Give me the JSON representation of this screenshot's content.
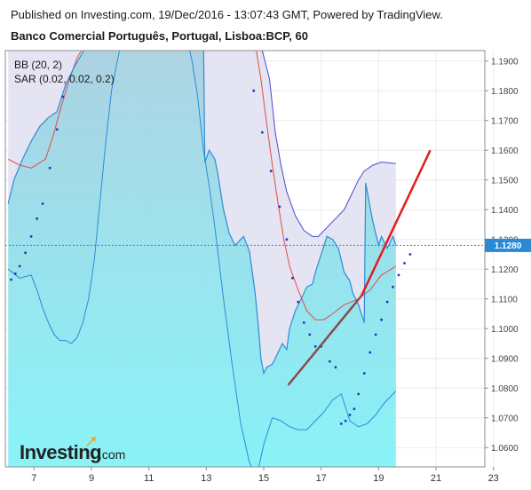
{
  "header": {
    "published": "Published on Investing.com, 19/Dec/2016 - 13:07:43 GMT, Powered by TradingView.",
    "instrument": "Banco Comercial Português, Portugal, Lisboa:BCP, 60"
  },
  "legend": {
    "bb": "BB (20, 2)",
    "sar": "SAR (0.02, 0.02, 0.2)"
  },
  "logo": {
    "brand": "Investing",
    "suffix": ".com"
  },
  "chart_data": {
    "type": "line",
    "title": "Banco Comercial Português, Portugal, Lisboa:BCP, 60",
    "x_ticks": [
      "7",
      "9",
      "11",
      "13",
      "15",
      "17",
      "19",
      "21",
      "23"
    ],
    "y_ticks": [
      "1.1900",
      "1.1800",
      "1.1700",
      "1.1600",
      "1.1500",
      "1.1400",
      "1.1300",
      "1.1200",
      "1.1100",
      "1.1000",
      "1.0900",
      "1.0800",
      "1.0700",
      "1.0600"
    ],
    "ylim": [
      1.0535,
      1.1935
    ],
    "current_price": "1.1280",
    "colors": {
      "band_fill": "#e3e3f2",
      "upper_line": "#4a4ad6",
      "middle_line": "#e34a4a",
      "price_line": "#2c8cd8",
      "price_fill_top": "#a9cfe0",
      "price_fill_bottom": "#7ff2f7",
      "sar": "#1f36c2",
      "trend": "#e31b1b",
      "price_tag": "#2a8ad4"
    },
    "price": [
      {
        "x": 6.1,
        "y": 1.142
      },
      {
        "x": 6.3,
        "y": 1.15
      },
      {
        "x": 6.6,
        "y": 1.157
      },
      {
        "x": 6.9,
        "y": 1.163
      },
      {
        "x": 7.2,
        "y": 1.168
      },
      {
        "x": 7.5,
        "y": 1.171
      },
      {
        "x": 7.8,
        "y": 1.173
      },
      {
        "x": 8.1,
        "y": 1.182
      },
      {
        "x": 8.4,
        "y": 1.188
      },
      {
        "x": 8.7,
        "y": 1.193
      },
      {
        "x": 9.0,
        "y": 1.196
      },
      {
        "x": 9.3,
        "y": 1.199
      },
      {
        "x": 12.9,
        "y": 1.199
      },
      {
        "x": 12.95,
        "y": 1.156
      },
      {
        "x": 13.1,
        "y": 1.16
      },
      {
        "x": 13.3,
        "y": 1.157
      },
      {
        "x": 13.4,
        "y": 1.152
      },
      {
        "x": 13.6,
        "y": 1.14
      },
      {
        "x": 13.8,
        "y": 1.132
      },
      {
        "x": 14.0,
        "y": 1.128
      },
      {
        "x": 14.2,
        "y": 1.13
      },
      {
        "x": 14.3,
        "y": 1.131
      },
      {
        "x": 14.5,
        "y": 1.126
      },
      {
        "x": 14.7,
        "y": 1.112
      },
      {
        "x": 14.8,
        "y": 1.102
      },
      {
        "x": 14.9,
        "y": 1.09
      },
      {
        "x": 15.0,
        "y": 1.085
      },
      {
        "x": 15.1,
        "y": 1.087
      },
      {
        "x": 15.3,
        "y": 1.088
      },
      {
        "x": 15.5,
        "y": 1.092
      },
      {
        "x": 15.65,
        "y": 1.095
      },
      {
        "x": 15.8,
        "y": 1.093
      },
      {
        "x": 15.9,
        "y": 1.1
      },
      {
        "x": 16.1,
        "y": 1.106
      },
      {
        "x": 16.3,
        "y": 1.11
      },
      {
        "x": 16.5,
        "y": 1.114
      },
      {
        "x": 16.7,
        "y": 1.115
      },
      {
        "x": 16.8,
        "y": 1.119
      },
      {
        "x": 17.0,
        "y": 1.125
      },
      {
        "x": 17.2,
        "y": 1.131
      },
      {
        "x": 17.4,
        "y": 1.13
      },
      {
        "x": 17.6,
        "y": 1.127
      },
      {
        "x": 17.8,
        "y": 1.119
      },
      {
        "x": 18.0,
        "y": 1.116
      },
      {
        "x": 18.1,
        "y": 1.112
      },
      {
        "x": 18.3,
        "y": 1.108
      },
      {
        "x": 18.5,
        "y": 1.102
      },
      {
        "x": 18.55,
        "y": 1.149
      },
      {
        "x": 18.7,
        "y": 1.141
      },
      {
        "x": 18.8,
        "y": 1.136
      },
      {
        "x": 19.0,
        "y": 1.128
      },
      {
        "x": 19.1,
        "y": 1.131
      },
      {
        "x": 19.2,
        "y": 1.129
      },
      {
        "x": 19.3,
        "y": 1.127
      },
      {
        "x": 19.5,
        "y": 1.131
      },
      {
        "x": 19.6,
        "y": 1.128
      }
    ],
    "bb_upper": [
      {
        "x": 6.1,
        "y": 1.196
      },
      {
        "x": 7.8,
        "y": 1.199
      },
      {
        "x": 14.8,
        "y": 1.199
      },
      {
        "x": 15.2,
        "y": 1.184
      },
      {
        "x": 15.4,
        "y": 1.166
      },
      {
        "x": 15.6,
        "y": 1.155
      },
      {
        "x": 15.8,
        "y": 1.146
      },
      {
        "x": 16.1,
        "y": 1.138
      },
      {
        "x": 16.4,
        "y": 1.133
      },
      {
        "x": 16.7,
        "y": 1.131
      },
      {
        "x": 16.9,
        "y": 1.131
      },
      {
        "x": 17.2,
        "y": 1.134
      },
      {
        "x": 17.5,
        "y": 1.137
      },
      {
        "x": 17.8,
        "y": 1.14
      },
      {
        "x": 18.1,
        "y": 1.146
      },
      {
        "x": 18.3,
        "y": 1.15
      },
      {
        "x": 18.5,
        "y": 1.153
      },
      {
        "x": 18.8,
        "y": 1.155
      },
      {
        "x": 19.1,
        "y": 1.156
      },
      {
        "x": 19.6,
        "y": 1.1555
      }
    ],
    "bb_middle": [
      {
        "x": 6.1,
        "y": 1.157
      },
      {
        "x": 6.5,
        "y": 1.155
      },
      {
        "x": 6.9,
        "y": 1.154
      },
      {
        "x": 7.4,
        "y": 1.157
      },
      {
        "x": 7.7,
        "y": 1.166
      },
      {
        "x": 7.9,
        "y": 1.173
      },
      {
        "x": 8.2,
        "y": 1.183
      },
      {
        "x": 8.5,
        "y": 1.191
      },
      {
        "x": 8.8,
        "y": 1.196
      },
      {
        "x": 14.7,
        "y": 1.196
      },
      {
        "x": 14.9,
        "y": 1.184
      },
      {
        "x": 15.1,
        "y": 1.169
      },
      {
        "x": 15.3,
        "y": 1.155
      },
      {
        "x": 15.5,
        "y": 1.142
      },
      {
        "x": 15.7,
        "y": 1.13
      },
      {
        "x": 15.9,
        "y": 1.121
      },
      {
        "x": 16.2,
        "y": 1.113
      },
      {
        "x": 16.5,
        "y": 1.106
      },
      {
        "x": 16.8,
        "y": 1.103
      },
      {
        "x": 17.1,
        "y": 1.103
      },
      {
        "x": 17.4,
        "y": 1.105
      },
      {
        "x": 17.8,
        "y": 1.108
      },
      {
        "x": 18.3,
        "y": 1.11
      },
      {
        "x": 18.7,
        "y": 1.113
      },
      {
        "x": 19.1,
        "y": 1.118
      },
      {
        "x": 19.6,
        "y": 1.121
      }
    ],
    "bb_lower": [
      {
        "x": 6.1,
        "y": 1.12
      },
      {
        "x": 6.5,
        "y": 1.117
      },
      {
        "x": 6.9,
        "y": 1.118
      },
      {
        "x": 7.1,
        "y": 1.113
      },
      {
        "x": 7.3,
        "y": 1.107
      },
      {
        "x": 7.5,
        "y": 1.102
      },
      {
        "x": 7.7,
        "y": 1.098
      },
      {
        "x": 7.9,
        "y": 1.096
      },
      {
        "x": 8.1,
        "y": 1.096
      },
      {
        "x": 8.3,
        "y": 1.095
      },
      {
        "x": 8.5,
        "y": 1.097
      },
      {
        "x": 8.7,
        "y": 1.102
      },
      {
        "x": 8.9,
        "y": 1.11
      },
      {
        "x": 9.1,
        "y": 1.123
      },
      {
        "x": 9.3,
        "y": 1.143
      },
      {
        "x": 9.5,
        "y": 1.163
      },
      {
        "x": 9.7,
        "y": 1.18
      },
      {
        "x": 9.9,
        "y": 1.19
      },
      {
        "x": 10.1,
        "y": 1.199
      },
      {
        "x": 12.3,
        "y": 1.199
      },
      {
        "x": 12.5,
        "y": 1.19
      },
      {
        "x": 12.7,
        "y": 1.178
      },
      {
        "x": 12.9,
        "y": 1.16
      },
      {
        "x": 13.1,
        "y": 1.148
      },
      {
        "x": 13.3,
        "y": 1.134
      },
      {
        "x": 13.6,
        "y": 1.11
      },
      {
        "x": 13.9,
        "y": 1.088
      },
      {
        "x": 14.2,
        "y": 1.068
      },
      {
        "x": 14.5,
        "y": 1.055
      },
      {
        "x": 14.75,
        "y": 1.05
      },
      {
        "x": 15.0,
        "y": 1.061
      },
      {
        "x": 15.3,
        "y": 1.07
      },
      {
        "x": 15.6,
        "y": 1.069
      },
      {
        "x": 15.9,
        "y": 1.067
      },
      {
        "x": 16.2,
        "y": 1.066
      },
      {
        "x": 16.5,
        "y": 1.066
      },
      {
        "x": 16.8,
        "y": 1.069
      },
      {
        "x": 17.1,
        "y": 1.072
      },
      {
        "x": 17.4,
        "y": 1.076
      },
      {
        "x": 17.7,
        "y": 1.078
      },
      {
        "x": 18.0,
        "y": 1.069
      },
      {
        "x": 18.3,
        "y": 1.067
      },
      {
        "x": 18.6,
        "y": 1.068
      },
      {
        "x": 18.9,
        "y": 1.071
      },
      {
        "x": 19.2,
        "y": 1.075
      },
      {
        "x": 19.6,
        "y": 1.079
      }
    ],
    "sar": [
      {
        "x": 6.2,
        "y": 1.1165
      },
      {
        "x": 6.35,
        "y": 1.1185
      },
      {
        "x": 6.5,
        "y": 1.121
      },
      {
        "x": 6.7,
        "y": 1.1255
      },
      {
        "x": 6.9,
        "y": 1.131
      },
      {
        "x": 7.1,
        "y": 1.137
      },
      {
        "x": 7.3,
        "y": 1.142
      },
      {
        "x": 7.55,
        "y": 1.154
      },
      {
        "x": 7.8,
        "y": 1.167
      },
      {
        "x": 8.0,
        "y": 1.178
      },
      {
        "x": 14.65,
        "y": 1.18
      },
      {
        "x": 14.95,
        "y": 1.166
      },
      {
        "x": 15.25,
        "y": 1.153
      },
      {
        "x": 15.55,
        "y": 1.141
      },
      {
        "x": 15.8,
        "y": 1.13
      },
      {
        "x": 16.0,
        "y": 1.117
      },
      {
        "x": 16.2,
        "y": 1.109
      },
      {
        "x": 16.4,
        "y": 1.102
      },
      {
        "x": 16.6,
        "y": 1.098
      },
      {
        "x": 16.8,
        "y": 1.094
      },
      {
        "x": 17.0,
        "y": 1.094
      },
      {
        "x": 17.3,
        "y": 1.089
      },
      {
        "x": 17.5,
        "y": 1.087
      },
      {
        "x": 17.7,
        "y": 1.068
      },
      {
        "x": 17.85,
        "y": 1.069
      },
      {
        "x": 18.0,
        "y": 1.071
      },
      {
        "x": 18.15,
        "y": 1.073
      },
      {
        "x": 18.3,
        "y": 1.078
      },
      {
        "x": 18.5,
        "y": 1.085
      },
      {
        "x": 18.7,
        "y": 1.092
      },
      {
        "x": 18.9,
        "y": 1.098
      },
      {
        "x": 19.1,
        "y": 1.103
      },
      {
        "x": 19.3,
        "y": 1.109
      },
      {
        "x": 19.5,
        "y": 1.114
      },
      {
        "x": 19.7,
        "y": 1.118
      },
      {
        "x": 19.9,
        "y": 1.122
      },
      {
        "x": 20.1,
        "y": 1.125
      }
    ],
    "trendline": {
      "dark_segment": [
        {
          "x": 15.85,
          "y": 1.081
        },
        {
          "x": 18.4,
          "y": 1.111
        }
      ],
      "red_segment": [
        {
          "x": 18.4,
          "y": 1.111
        },
        {
          "x": 20.8,
          "y": 1.16
        }
      ]
    }
  }
}
